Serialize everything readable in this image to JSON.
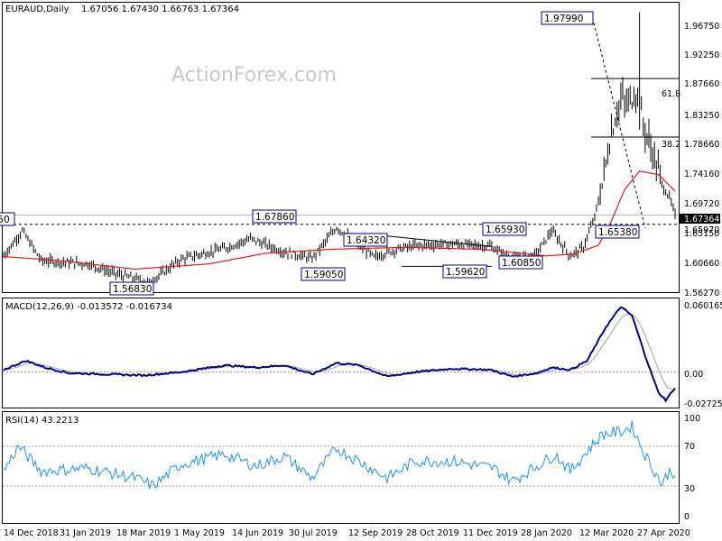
{
  "header": {
    "symbol_label": "EURAUD,Daily",
    "ohlc": "1.67056 1.67430 1.66763 1.67364",
    "watermark": "ActionForex.com"
  },
  "price_panel": {
    "axis_ticks": [
      "1.96750",
      "1.92250",
      "1.87660",
      "1.83250",
      "1.78660",
      "1.74160",
      "1.69720",
      "1.65150",
      "1.60660",
      "1.56270"
    ],
    "current_price": "1.67364",
    "support_price": "1.65970",
    "left_cut_label": "1.6750",
    "annotations": [
      "1.97990",
      "1.67860",
      "1.65930",
      "1.65380",
      "1.64320",
      "1.59050",
      "1.60850",
      "1.59620",
      "1.56830"
    ],
    "fib_61": "61.8",
    "fib_38": "38.2"
  },
  "macd_panel": {
    "title": "MACD(12,26,9) -0.013572 -0.016734",
    "axis_ticks": [
      "0.060165",
      "0.00",
      "-0.02725"
    ]
  },
  "rsi_panel": {
    "title": "RSI(14) 43.2213",
    "axis_ticks": [
      "100",
      "70",
      "30",
      "0"
    ]
  },
  "x_axis": {
    "labels": [
      "14 Dec 2018",
      "31 Jan 2019",
      "18 Mar 2019",
      "1 May 2019",
      "14 Jun 2019",
      "30 Jul 2019",
      "12 Sep 2019",
      "28 Oct 2019",
      "11 Dec 2019",
      "28 Jan 2020",
      "12 Mar 2020",
      "27 Apr 2020"
    ]
  },
  "colors": {
    "price_bars": "#000000",
    "sma": "#e01b1b",
    "macd_line": "#000080",
    "signal_line": "#a0a0a0",
    "rsi_line": "#1e90ff",
    "annotation_border": "#000080"
  },
  "chart_data": [
    {
      "type": "line",
      "title": "EURAUD,Daily",
      "note": "OHLC bars with moving average",
      "x": [
        "14 Dec 2018",
        "31 Jan 2019",
        "18 Mar 2019",
        "1 May 2019",
        "14 Jun 2019",
        "30 Jul 2019",
        "12 Sep 2019",
        "28 Oct 2019",
        "11 Dec 2019",
        "28 Jan 2020",
        "12 Mar 2020",
        "27 Apr 2020"
      ],
      "series": [
        {
          "name": "Close",
          "values": [
            1.605,
            1.6,
            1.575,
            1.625,
            1.65,
            1.64,
            1.628,
            1.63,
            1.603,
            1.65,
            1.85,
            1.67
          ]
        },
        {
          "name": "MA",
          "values": [
            1.612,
            1.605,
            1.598,
            1.608,
            1.628,
            1.628,
            1.628,
            1.625,
            1.615,
            1.618,
            1.735,
            1.7
          ]
        }
      ],
      "key_levels": [
        1.9799,
        1.6786,
        1.6593,
        1.6538,
        1.6432,
        1.5905,
        1.6085,
        1.5962,
        1.5683
      ],
      "ylim": [
        1.5627,
        1.985
      ]
    },
    {
      "type": "line",
      "title": "MACD(12,26,9) -0.013572 -0.016734",
      "x": [
        "14 Dec 2018",
        "31 Jan 2019",
        "18 Mar 2019",
        "1 May 2019",
        "14 Jun 2019",
        "30 Jul 2019",
        "12 Sep 2019",
        "28 Oct 2019",
        "11 Dec 2019",
        "28 Jan 2020",
        "12 Mar 2020",
        "27 Apr 2020"
      ],
      "series": [
        {
          "name": "MACD",
          "values": [
            0.01,
            0.0,
            -0.002,
            0.005,
            0.006,
            0.006,
            -0.004,
            0.002,
            -0.003,
            0.004,
            0.058,
            -0.022
          ]
        },
        {
          "name": "Signal",
          "values": [
            0.008,
            0.001,
            -0.001,
            0.004,
            0.006,
            0.005,
            -0.002,
            0.002,
            -0.002,
            0.002,
            0.045,
            -0.02
          ]
        }
      ],
      "ylim": [
        -0.03,
        0.063
      ]
    },
    {
      "type": "line",
      "title": "RSI(14) 43.2213",
      "x": [
        "14 Dec 2018",
        "31 Jan 2019",
        "18 Mar 2019",
        "1 May 2019",
        "14 Jun 2019",
        "30 Jul 2019",
        "12 Sep 2019",
        "28 Oct 2019",
        "11 Dec 2019",
        "28 Jan 2020",
        "12 Mar 2020",
        "27 Apr 2020"
      ],
      "series": [
        {
          "name": "RSI",
          "values": [
            48,
            45,
            40,
            55,
            58,
            55,
            42,
            52,
            40,
            60,
            85,
            43
          ]
        }
      ],
      "ylim": [
        0,
        100
      ]
    }
  ]
}
